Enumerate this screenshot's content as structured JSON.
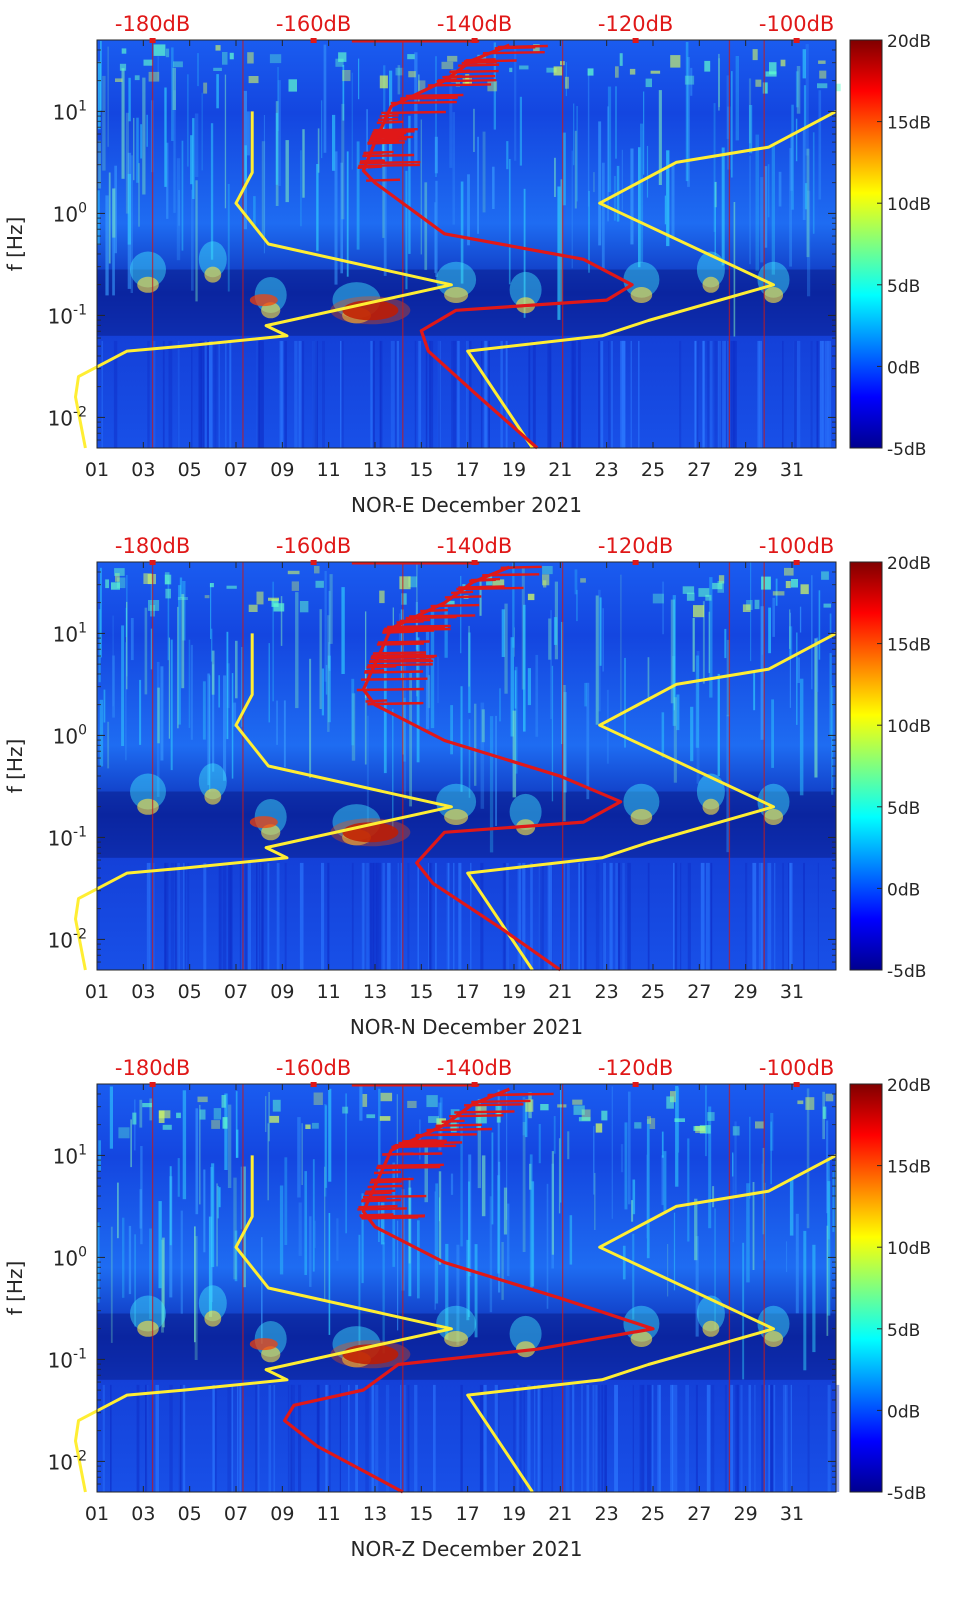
{
  "chart_data": [
    {
      "type": "heatmap",
      "title": "",
      "xlabel": "NOR-E December 2021",
      "ylabel": "f [Hz]",
      "xticks": [
        "01",
        "03",
        "05",
        "07",
        "09",
        "11",
        "13",
        "15",
        "17",
        "19",
        "21",
        "23",
        "25",
        "27",
        "29",
        "31"
      ],
      "yticks": [
        "10^-2",
        "10^-1",
        "10^0",
        "10^1"
      ],
      "top_ticks": [
        "-180dB",
        "-160dB",
        "-140dB",
        "-120dB",
        "-100dB"
      ],
      "colorbar_ticks": [
        "20dB",
        "15dB",
        "10dB",
        "5dB",
        "0dB",
        "-5dB"
      ],
      "xlim": [
        1,
        32.9
      ],
      "ylim_log10": [
        -2.3,
        1.7
      ],
      "clim": [
        -5,
        20
      ],
      "series": [
        {
          "name": "noise model (yellow, left)",
          "color": "#ffee33",
          "points": [
            [
              0.5,
              -2.3
            ],
            [
              0.07,
              -1.8
            ],
            [
              0.2,
              -1.6
            ],
            [
              2.3,
              -1.35
            ],
            [
              4.8,
              -1.3
            ],
            [
              9.2,
              -1.2
            ],
            [
              8.3,
              -1.1
            ],
            [
              16.3,
              -0.7
            ],
            [
              8.4,
              -0.3
            ],
            [
              7.0,
              0.1
            ],
            [
              7.7,
              0.4
            ],
            [
              7.7,
              1.0
            ]
          ]
        },
        {
          "name": "noise model (yellow, right)",
          "color": "#ffee33",
          "points": [
            [
              19.8,
              -2.3
            ],
            [
              17.0,
              -1.35
            ],
            [
              22.8,
              -1.2
            ],
            [
              24.8,
              -1.05
            ],
            [
              30.2,
              -0.7
            ],
            [
              22.7,
              0.1
            ],
            [
              26.0,
              0.5
            ],
            [
              30.0,
              0.65
            ],
            [
              32.9,
              1.0
            ]
          ]
        },
        {
          "name": "PSD median (red)",
          "color": "#e01818",
          "points": [
            [
              20.0,
              -2.3
            ],
            [
              17.5,
              -1.8
            ],
            [
              15.3,
              -1.35
            ],
            [
              15.0,
              -1.15
            ],
            [
              16.5,
              -0.95
            ],
            [
              23.0,
              -0.85
            ],
            [
              24.1,
              -0.7
            ],
            [
              22.0,
              -0.45
            ],
            [
              16.0,
              -0.2
            ],
            [
              13.0,
              0.3
            ],
            [
              12.5,
              0.42
            ],
            [
              13.0,
              0.7
            ],
            [
              13.7,
              1.05
            ],
            [
              16.0,
              1.3
            ],
            [
              17.2,
              1.5
            ],
            [
              18.8,
              1.65
            ]
          ]
        }
      ]
    },
    {
      "type": "heatmap",
      "title": "",
      "xlabel": "NOR-N December 2021",
      "ylabel": "f [Hz]",
      "xticks": [
        "01",
        "03",
        "05",
        "07",
        "09",
        "11",
        "13",
        "15",
        "17",
        "19",
        "21",
        "23",
        "25",
        "27",
        "29",
        "31"
      ],
      "yticks": [
        "10^-2",
        "10^-1",
        "10^0",
        "10^1"
      ],
      "top_ticks": [
        "-180dB",
        "-160dB",
        "-140dB",
        "-120dB",
        "-100dB"
      ],
      "colorbar_ticks": [
        "20dB",
        "15dB",
        "10dB",
        "5dB",
        "0dB",
        "-5dB"
      ],
      "xlim": [
        1,
        32.9
      ],
      "ylim_log10": [
        -2.3,
        1.7
      ],
      "clim": [
        -5,
        20
      ],
      "series": [
        {
          "name": "noise model (yellow, left)",
          "color": "#ffee33",
          "points": [
            [
              0.5,
              -2.3
            ],
            [
              0.07,
              -1.8
            ],
            [
              0.2,
              -1.6
            ],
            [
              2.3,
              -1.35
            ],
            [
              4.8,
              -1.3
            ],
            [
              9.2,
              -1.2
            ],
            [
              8.3,
              -1.1
            ],
            [
              16.3,
              -0.7
            ],
            [
              8.4,
              -0.3
            ],
            [
              7.0,
              0.1
            ],
            [
              7.7,
              0.4
            ],
            [
              7.7,
              1.0
            ]
          ]
        },
        {
          "name": "noise model (yellow, right)",
          "color": "#ffee33",
          "points": [
            [
              19.8,
              -2.3
            ],
            [
              17.0,
              -1.35
            ],
            [
              22.8,
              -1.2
            ],
            [
              24.8,
              -1.05
            ],
            [
              30.2,
              -0.7
            ],
            [
              22.7,
              0.1
            ],
            [
              26.0,
              0.5
            ],
            [
              30.0,
              0.65
            ],
            [
              32.9,
              1.0
            ]
          ]
        },
        {
          "name": "PSD median (red)",
          "color": "#e01818",
          "points": [
            [
              21.0,
              -2.3
            ],
            [
              18.5,
              -1.9
            ],
            [
              15.5,
              -1.45
            ],
            [
              14.8,
              -1.25
            ],
            [
              16.0,
              -0.95
            ],
            [
              22.0,
              -0.85
            ],
            [
              23.6,
              -0.65
            ],
            [
              21.0,
              -0.4
            ],
            [
              16.0,
              -0.05
            ],
            [
              13.0,
              0.3
            ],
            [
              12.5,
              0.45
            ],
            [
              13.0,
              0.7
            ],
            [
              13.7,
              1.05
            ],
            [
              16.0,
              1.3
            ],
            [
              17.2,
              1.5
            ],
            [
              18.8,
              1.65
            ]
          ]
        }
      ]
    },
    {
      "type": "heatmap",
      "title": "",
      "xlabel": "NOR-Z December 2021",
      "ylabel": "f [Hz]",
      "xticks": [
        "01",
        "03",
        "05",
        "07",
        "09",
        "11",
        "13",
        "15",
        "17",
        "19",
        "21",
        "23",
        "25",
        "27",
        "29",
        "31"
      ],
      "yticks": [
        "10^-2",
        "10^-1",
        "10^0",
        "10^1"
      ],
      "top_ticks": [
        "-180dB",
        "-160dB",
        "-140dB",
        "-120dB",
        "-100dB"
      ],
      "colorbar_ticks": [
        "20dB",
        "15dB",
        "10dB",
        "5dB",
        "0dB",
        "-5dB"
      ],
      "xlim": [
        1,
        32.9
      ],
      "ylim_log10": [
        -2.3,
        1.7
      ],
      "clim": [
        -5,
        20
      ],
      "series": [
        {
          "name": "noise model (yellow, left)",
          "color": "#ffee33",
          "points": [
            [
              0.5,
              -2.3
            ],
            [
              0.07,
              -1.8
            ],
            [
              0.2,
              -1.6
            ],
            [
              2.3,
              -1.35
            ],
            [
              4.8,
              -1.3
            ],
            [
              9.2,
              -1.2
            ],
            [
              8.3,
              -1.1
            ],
            [
              16.3,
              -0.7
            ],
            [
              8.4,
              -0.3
            ],
            [
              7.0,
              0.1
            ],
            [
              7.7,
              0.4
            ],
            [
              7.7,
              1.0
            ]
          ]
        },
        {
          "name": "noise model (yellow, right)",
          "color": "#ffee33",
          "points": [
            [
              19.8,
              -2.3
            ],
            [
              17.0,
              -1.35
            ],
            [
              22.8,
              -1.2
            ],
            [
              24.8,
              -1.05
            ],
            [
              30.2,
              -0.7
            ],
            [
              22.7,
              0.1
            ],
            [
              26.0,
              0.5
            ],
            [
              30.0,
              0.65
            ],
            [
              32.9,
              1.0
            ]
          ]
        },
        {
          "name": "PSD median (red)",
          "color": "#e01818",
          "points": [
            [
              14.2,
              -2.3
            ],
            [
              10.5,
              -1.85
            ],
            [
              9.1,
              -1.6
            ],
            [
              9.5,
              -1.45
            ],
            [
              12.5,
              -1.3
            ],
            [
              14.0,
              -1.05
            ],
            [
              20.0,
              -0.9
            ],
            [
              25.0,
              -0.7
            ],
            [
              21.0,
              -0.4
            ],
            [
              16.0,
              -0.05
            ],
            [
              13.0,
              0.3
            ],
            [
              12.5,
              0.45
            ],
            [
              13.0,
              0.7
            ],
            [
              13.7,
              1.05
            ],
            [
              16.0,
              1.3
            ],
            [
              17.2,
              1.5
            ],
            [
              18.8,
              1.65
            ]
          ]
        }
      ]
    }
  ]
}
